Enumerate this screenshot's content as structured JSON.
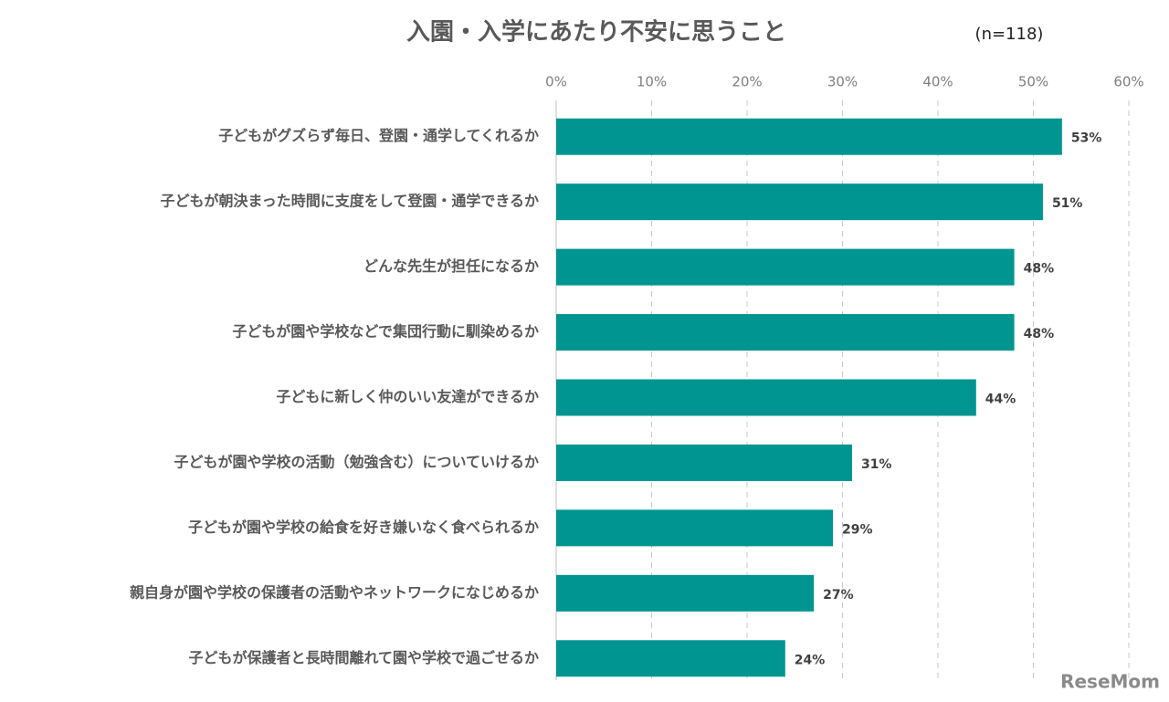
{
  "chart_data": {
    "type": "bar",
    "orientation": "horizontal",
    "title": "入園・入学にあたり不安に思うこと",
    "subtitle": "(n=118)",
    "watermark": "ReseMom",
    "categories": [
      "子どもがグズらず毎日、登園・通学してくれるか",
      "子どもが朝決まった時間に支度をして登園・通学できるか",
      "どんな先生が担任になるか",
      "子どもが園や学校などで集団行動に馴染めるか",
      "子どもに新しく仲のいい友達ができるか",
      "子どもが園や学校の活動（勉強含む）についていけるか",
      "子どもが園や学校の給食を好き嫌いなく食べられるか",
      "親自身が園や学校の保護者の活動やネットワークになじめるか",
      "子どもが保護者と長時間離れて園や学校で過ごせるか"
    ],
    "values": [
      53,
      51,
      48,
      48,
      44,
      31,
      29,
      27,
      24
    ],
    "value_labels": [
      "53%",
      "51%",
      "48%",
      "48%",
      "44%",
      "31%",
      "29%",
      "27%",
      "24%"
    ],
    "color": "#009591",
    "xlim": [
      0,
      60
    ],
    "xticks": [
      {
        "value": 0,
        "label": "0%"
      },
      {
        "value": 10,
        "label": "10%"
      },
      {
        "value": 20,
        "label": "20%"
      },
      {
        "value": 30,
        "label": "30%"
      },
      {
        "value": 40,
        "label": "40%"
      },
      {
        "value": 50,
        "label": "50%"
      },
      {
        "value": 60,
        "label": "60%"
      }
    ],
    "grid": true
  }
}
